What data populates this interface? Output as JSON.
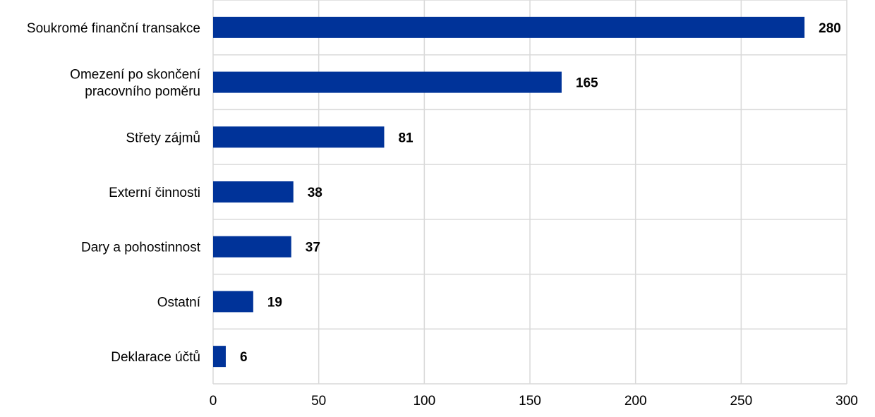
{
  "chart_data": {
    "type": "bar",
    "orientation": "horizontal",
    "categories": [
      "Soukromé finanční transakce",
      "Omezení po skončení pracovního poměru",
      "Střety zájmů",
      "Externí činnosti",
      "Dary a pohostinnost",
      "Ostatní",
      "Deklarace účtů"
    ],
    "category_lines": [
      [
        "Soukromé finanční transakce"
      ],
      [
        "Omezení po skončení",
        "pracovního poměru"
      ],
      [
        "Střety zájmů"
      ],
      [
        "Externí činnosti"
      ],
      [
        "Dary a pohostinnost"
      ],
      [
        "Ostatní"
      ],
      [
        "Deklarace účtů"
      ]
    ],
    "values": [
      280,
      165,
      81,
      38,
      37,
      19,
      6
    ],
    "xlim": [
      0,
      300
    ],
    "xticks": [
      0,
      50,
      100,
      150,
      200,
      250,
      300
    ],
    "grid": true,
    "legend": "none",
    "data_labels": true,
    "bar_color": "#003399",
    "grid_color": "#d9d9d9"
  }
}
